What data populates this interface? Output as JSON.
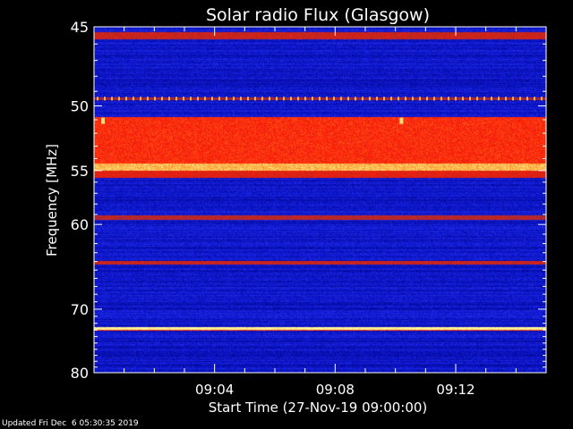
{
  "chart_data": {
    "type": "heatmap",
    "title": "Solar radio Flux (Glasgow)",
    "xlabel": "Start Time (27-Nov-19 09:00:00)",
    "ylabel": "Frequency [MHz]",
    "x_unit": "minutes after 09:00:00",
    "xlim": [
      0,
      15
    ],
    "ylim": [
      80,
      45
    ],
    "y_scale": "reciprocal",
    "x_ticks": [
      {
        "value": 4,
        "label": "09:04"
      },
      {
        "value": 8,
        "label": "09:08"
      },
      {
        "value": 12,
        "label": "09:12"
      }
    ],
    "y_ticks": [
      {
        "value": 45,
        "label": "45"
      },
      {
        "value": 50,
        "label": "50"
      },
      {
        "value": 55,
        "label": "55"
      },
      {
        "value": 60,
        "label": "60"
      },
      {
        "value": 70,
        "label": "70"
      },
      {
        "value": 80,
        "label": "80"
      }
    ],
    "y_minor_ticks": [
      46,
      47,
      48,
      49,
      51,
      52,
      53,
      54,
      56,
      57,
      58,
      59,
      61,
      62,
      63,
      64,
      65,
      66,
      67,
      68,
      69,
      71,
      72,
      73,
      74,
      75,
      76,
      77,
      78,
      79
    ],
    "x_minor_ticks": [
      1,
      2,
      3,
      5,
      6,
      7,
      9,
      10,
      11,
      13,
      14
    ],
    "colormap": [
      "#000066",
      "#0a14c8",
      "#2a34f0",
      "#b42820",
      "#ff1e0a",
      "#ff8c1e",
      "#ffffa0"
    ],
    "background_intensity": 0.18,
    "bands": [
      {
        "freq_from": 45.3,
        "freq_to": 45.7,
        "intensity": 0.55
      },
      {
        "freq_from": 49.4,
        "freq_to": 49.6,
        "intensity": 0.5
      },
      {
        "freq_from": 50.8,
        "freq_to": 54.4,
        "intensity": 0.68
      },
      {
        "freq_from": 54.4,
        "freq_to": 55.0,
        "intensity": 0.9
      },
      {
        "freq_from": 55.0,
        "freq_to": 55.6,
        "intensity": 0.6
      },
      {
        "freq_from": 59.1,
        "freq_to": 59.5,
        "intensity": 0.52
      },
      {
        "freq_from": 63.9,
        "freq_to": 64.4,
        "intensity": 0.55
      },
      {
        "freq_from": 72.5,
        "freq_to": 72.9,
        "intensity": 1.0
      },
      {
        "freq_from": 72.9,
        "freq_to": 73.1,
        "intensity": 0.7
      }
    ],
    "hot_spots": [
      {
        "time": 0.3,
        "freq": 51.1,
        "intensity": 0.95
      },
      {
        "time": 10.2,
        "freq": 51.1,
        "intensity": 0.95
      }
    ],
    "dotted_line": {
      "freq": 49.5,
      "intensity": 0.9
    }
  },
  "footer": {
    "updated": "Updated Fri Dec  6 05:30:35 2019"
  }
}
